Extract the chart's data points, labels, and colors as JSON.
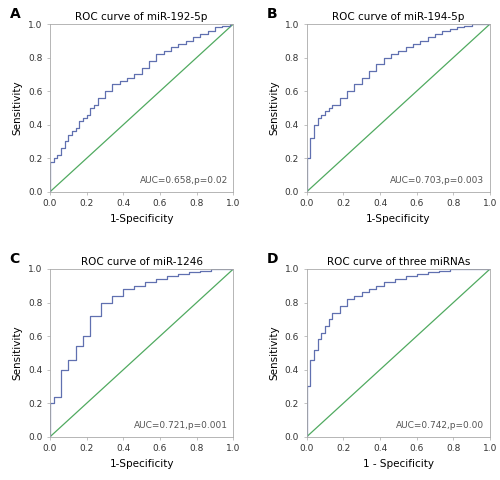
{
  "panels": [
    {
      "label": "A",
      "title": "ROC curve of miR-192-5p",
      "auc_text": "AUC=0.658,p=0.02",
      "xlabel": "1-Specificity",
      "ylabel": "Sensitivity",
      "roc_fpr": [
        0.0,
        0.0,
        0.02,
        0.02,
        0.04,
        0.04,
        0.06,
        0.06,
        0.08,
        0.08,
        0.1,
        0.1,
        0.12,
        0.12,
        0.14,
        0.14,
        0.16,
        0.16,
        0.18,
        0.18,
        0.2,
        0.2,
        0.22,
        0.22,
        0.24,
        0.24,
        0.26,
        0.26,
        0.3,
        0.3,
        0.34,
        0.34,
        0.38,
        0.38,
        0.42,
        0.42,
        0.46,
        0.46,
        0.5,
        0.5,
        0.54,
        0.54,
        0.58,
        0.58,
        0.62,
        0.62,
        0.66,
        0.66,
        0.7,
        0.7,
        0.74,
        0.74,
        0.78,
        0.78,
        0.82,
        0.82,
        0.86,
        0.86,
        0.9,
        0.9,
        0.94,
        0.94,
        0.98,
        0.98,
        1.0
      ],
      "roc_tpr": [
        0.0,
        0.18,
        0.18,
        0.2,
        0.2,
        0.22,
        0.22,
        0.26,
        0.26,
        0.3,
        0.3,
        0.34,
        0.34,
        0.36,
        0.36,
        0.38,
        0.38,
        0.42,
        0.42,
        0.44,
        0.44,
        0.46,
        0.46,
        0.5,
        0.5,
        0.52,
        0.52,
        0.56,
        0.56,
        0.6,
        0.6,
        0.64,
        0.64,
        0.66,
        0.66,
        0.68,
        0.68,
        0.7,
        0.7,
        0.74,
        0.74,
        0.78,
        0.78,
        0.82,
        0.82,
        0.84,
        0.84,
        0.86,
        0.86,
        0.88,
        0.88,
        0.9,
        0.9,
        0.92,
        0.92,
        0.94,
        0.94,
        0.96,
        0.96,
        0.98,
        0.98,
        0.99,
        0.99,
        1.0,
        1.0
      ]
    },
    {
      "label": "B",
      "title": "ROC curve of miR-194-5p",
      "auc_text": "AUC=0.703,p=0.003",
      "xlabel": "1-Specificity",
      "ylabel": "Sensitivity",
      "roc_fpr": [
        0.0,
        0.0,
        0.02,
        0.02,
        0.04,
        0.04,
        0.06,
        0.06,
        0.08,
        0.08,
        0.1,
        0.1,
        0.12,
        0.12,
        0.14,
        0.14,
        0.18,
        0.18,
        0.22,
        0.22,
        0.26,
        0.26,
        0.3,
        0.3,
        0.34,
        0.34,
        0.38,
        0.38,
        0.42,
        0.42,
        0.46,
        0.46,
        0.5,
        0.5,
        0.54,
        0.54,
        0.58,
        0.58,
        0.62,
        0.62,
        0.66,
        0.66,
        0.7,
        0.7,
        0.74,
        0.74,
        0.78,
        0.78,
        0.82,
        0.82,
        0.86,
        0.86,
        0.9,
        0.9,
        0.94,
        0.94,
        0.98,
        0.98,
        1.0
      ],
      "roc_tpr": [
        0.0,
        0.2,
        0.2,
        0.32,
        0.32,
        0.4,
        0.4,
        0.44,
        0.44,
        0.46,
        0.46,
        0.48,
        0.48,
        0.5,
        0.5,
        0.52,
        0.52,
        0.56,
        0.56,
        0.6,
        0.6,
        0.64,
        0.64,
        0.68,
        0.68,
        0.72,
        0.72,
        0.76,
        0.76,
        0.8,
        0.8,
        0.82,
        0.82,
        0.84,
        0.84,
        0.86,
        0.86,
        0.88,
        0.88,
        0.9,
        0.9,
        0.92,
        0.92,
        0.94,
        0.94,
        0.96,
        0.96,
        0.97,
        0.97,
        0.98,
        0.98,
        0.99,
        0.99,
        1.0,
        1.0,
        1.0,
        1.0,
        1.0,
        1.0
      ]
    },
    {
      "label": "C",
      "title": "ROC curve of miR-1246",
      "auc_text": "AUC=0.721,p=0.001",
      "xlabel": "1-Specificity",
      "ylabel": "Sensitivity",
      "roc_fpr": [
        0.0,
        0.0,
        0.02,
        0.02,
        0.06,
        0.06,
        0.1,
        0.1,
        0.14,
        0.14,
        0.18,
        0.18,
        0.22,
        0.22,
        0.28,
        0.28,
        0.34,
        0.34,
        0.4,
        0.4,
        0.46,
        0.46,
        0.52,
        0.52,
        0.58,
        0.58,
        0.64,
        0.64,
        0.7,
        0.7,
        0.76,
        0.76,
        0.82,
        0.82,
        0.88,
        0.88,
        0.94,
        0.94,
        1.0
      ],
      "roc_tpr": [
        0.0,
        0.2,
        0.2,
        0.24,
        0.24,
        0.4,
        0.4,
        0.46,
        0.46,
        0.54,
        0.54,
        0.6,
        0.6,
        0.72,
        0.72,
        0.8,
        0.8,
        0.84,
        0.84,
        0.88,
        0.88,
        0.9,
        0.9,
        0.92,
        0.92,
        0.94,
        0.94,
        0.96,
        0.96,
        0.97,
        0.97,
        0.98,
        0.98,
        0.99,
        0.99,
        1.0,
        1.0,
        1.0,
        1.0
      ]
    },
    {
      "label": "D",
      "title": "ROC curve of three miRNAs",
      "auc_text": "AUC=0.742,p=0.00",
      "xlabel": "1 - Specificity",
      "ylabel": "Sensitivity",
      "roc_fpr": [
        0.0,
        0.0,
        0.02,
        0.02,
        0.04,
        0.04,
        0.06,
        0.06,
        0.08,
        0.08,
        0.1,
        0.1,
        0.12,
        0.12,
        0.14,
        0.14,
        0.18,
        0.18,
        0.22,
        0.22,
        0.26,
        0.26,
        0.3,
        0.3,
        0.34,
        0.34,
        0.38,
        0.38,
        0.42,
        0.42,
        0.48,
        0.48,
        0.54,
        0.54,
        0.6,
        0.6,
        0.66,
        0.66,
        0.72,
        0.72,
        0.78,
        0.78,
        0.84,
        0.84,
        0.9,
        0.9,
        0.96,
        0.96,
        1.0
      ],
      "roc_tpr": [
        0.0,
        0.3,
        0.3,
        0.46,
        0.46,
        0.52,
        0.52,
        0.58,
        0.58,
        0.62,
        0.62,
        0.66,
        0.66,
        0.7,
        0.7,
        0.74,
        0.74,
        0.78,
        0.78,
        0.82,
        0.82,
        0.84,
        0.84,
        0.86,
        0.86,
        0.88,
        0.88,
        0.9,
        0.9,
        0.92,
        0.92,
        0.94,
        0.94,
        0.96,
        0.96,
        0.97,
        0.97,
        0.98,
        0.98,
        0.99,
        0.99,
        1.0,
        1.0,
        1.0,
        1.0,
        1.0,
        1.0,
        1.0,
        1.0
      ]
    }
  ],
  "roc_line_color": "#6070b0",
  "diag_line_color": "#50aa60",
  "bg_color": "#ffffff",
  "tick_fontsize": 6.5,
  "label_fontsize": 7.5,
  "title_fontsize": 7.5,
  "auc_fontsize": 6.5,
  "panel_label_fontsize": 10
}
